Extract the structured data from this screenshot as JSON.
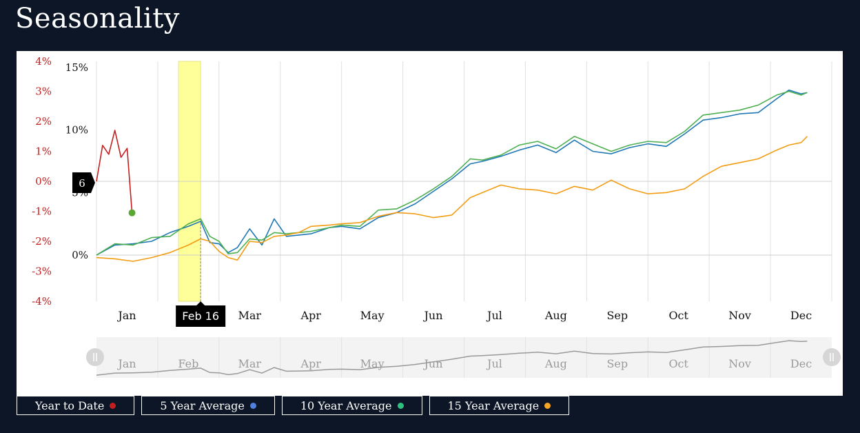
{
  "page": {
    "title": "Seasonality"
  },
  "legend": [
    {
      "label": "Year to Date",
      "color": "#c41f1f"
    },
    {
      "label": "5 Year Average",
      "color": "#4f7fe0"
    },
    {
      "label": "10 Year Average",
      "color": "#2ec27e"
    },
    {
      "label": "15 Year Average",
      "color": "#f5a623"
    }
  ],
  "tooltip": {
    "date": "Feb 16",
    "value": "6"
  },
  "chart_data": {
    "type": "line",
    "title": "Seasonality",
    "x_axis": {
      "type": "month",
      "labels": [
        "Jan",
        "Feb",
        "Mar",
        "Apr",
        "May",
        "Jun",
        "Jul",
        "Aug",
        "Sep",
        "Oct",
        "Nov",
        "Dec"
      ]
    },
    "y_axis_left": {
      "ticks": [
        "4%",
        "3%",
        "2%",
        "1%",
        "0%",
        "-1%",
        "-2%",
        "-3%",
        "-4%"
      ],
      "range": [
        -4,
        4
      ],
      "color": "#c41f1f"
    },
    "y_axis_right": {
      "ticks": [
        "15%",
        "10%",
        "5%",
        "0%"
      ],
      "range": [
        -3.7,
        15.5
      ]
    },
    "grid": true,
    "highlight_band": {
      "start_month": 1.34,
      "end_month": 1.7,
      "color": "#ffff99"
    },
    "crosshair": {
      "x_month": 1.7,
      "label": "Feb 16"
    },
    "series": [
      {
        "name": "Year to Date",
        "axis": "left",
        "color": "#c41f1f",
        "points": [
          [
            0,
            0
          ],
          [
            0.1,
            1.2
          ],
          [
            0.2,
            0.9
          ],
          [
            0.3,
            1.7
          ],
          [
            0.4,
            0.8
          ],
          [
            0.5,
            1.1
          ],
          [
            0.58,
            -1.05
          ]
        ]
      },
      {
        "name": "5 Year Average",
        "axis": "right",
        "color": "#1f77b4",
        "points": [
          [
            0,
            0
          ],
          [
            0.3,
            0.8
          ],
          [
            0.6,
            0.9
          ],
          [
            0.9,
            1.1
          ],
          [
            1.2,
            1.8
          ],
          [
            1.5,
            2.3
          ],
          [
            1.7,
            2.7
          ],
          [
            1.85,
            1.0
          ],
          [
            2.0,
            0.9
          ],
          [
            2.15,
            0.2
          ],
          [
            2.3,
            0.6
          ],
          [
            2.5,
            2.1
          ],
          [
            2.7,
            0.8
          ],
          [
            2.9,
            2.9
          ],
          [
            3.1,
            1.5
          ],
          [
            3.3,
            1.6
          ],
          [
            3.5,
            1.7
          ],
          [
            3.8,
            2.2
          ],
          [
            4.0,
            2.3
          ],
          [
            4.3,
            2.1
          ],
          [
            4.6,
            3.0
          ],
          [
            4.9,
            3.4
          ],
          [
            5.2,
            4.1
          ],
          [
            5.5,
            5.1
          ],
          [
            5.8,
            6.1
          ],
          [
            6.1,
            7.3
          ],
          [
            6.3,
            7.5
          ],
          [
            6.6,
            7.9
          ],
          [
            6.9,
            8.4
          ],
          [
            7.2,
            8.8
          ],
          [
            7.5,
            8.2
          ],
          [
            7.8,
            9.2
          ],
          [
            8.1,
            8.3
          ],
          [
            8.4,
            8.1
          ],
          [
            8.7,
            8.6
          ],
          [
            9.0,
            8.9
          ],
          [
            9.3,
            8.7
          ],
          [
            9.6,
            9.7
          ],
          [
            9.9,
            10.8
          ],
          [
            10.2,
            11.0
          ],
          [
            10.5,
            11.3
          ],
          [
            10.8,
            11.4
          ],
          [
            11.1,
            12.5
          ],
          [
            11.3,
            13.2
          ],
          [
            11.5,
            12.9
          ],
          [
            11.6,
            13.0
          ]
        ]
      },
      {
        "name": "10 Year Average",
        "axis": "right",
        "color": "#4caf50",
        "points": [
          [
            0,
            0
          ],
          [
            0.3,
            0.9
          ],
          [
            0.6,
            0.8
          ],
          [
            0.9,
            1.4
          ],
          [
            1.2,
            1.5
          ],
          [
            1.5,
            2.5
          ],
          [
            1.7,
            2.9
          ],
          [
            1.85,
            1.5
          ],
          [
            2.0,
            1.1
          ],
          [
            2.15,
            0.1
          ],
          [
            2.3,
            0.2
          ],
          [
            2.5,
            1.3
          ],
          [
            2.7,
            1.2
          ],
          [
            2.9,
            1.8
          ],
          [
            3.1,
            1.7
          ],
          [
            3.3,
            1.8
          ],
          [
            3.5,
            1.9
          ],
          [
            3.8,
            2.2
          ],
          [
            4.0,
            2.4
          ],
          [
            4.3,
            2.3
          ],
          [
            4.6,
            3.6
          ],
          [
            4.9,
            3.7
          ],
          [
            5.2,
            4.4
          ],
          [
            5.5,
            5.3
          ],
          [
            5.8,
            6.3
          ],
          [
            6.1,
            7.7
          ],
          [
            6.3,
            7.6
          ],
          [
            6.6,
            8.0
          ],
          [
            6.9,
            8.8
          ],
          [
            7.2,
            9.1
          ],
          [
            7.5,
            8.5
          ],
          [
            7.8,
            9.5
          ],
          [
            8.1,
            8.9
          ],
          [
            8.4,
            8.3
          ],
          [
            8.7,
            8.8
          ],
          [
            9.0,
            9.1
          ],
          [
            9.3,
            9.0
          ],
          [
            9.6,
            9.9
          ],
          [
            9.9,
            11.2
          ],
          [
            10.2,
            11.4
          ],
          [
            10.5,
            11.6
          ],
          [
            10.8,
            12.0
          ],
          [
            11.1,
            12.8
          ],
          [
            11.3,
            13.1
          ],
          [
            11.5,
            12.8
          ],
          [
            11.6,
            13.0
          ]
        ]
      },
      {
        "name": "15 Year Average",
        "axis": "right",
        "color": "#f39c12",
        "points": [
          [
            0,
            -0.2
          ],
          [
            0.3,
            -0.3
          ],
          [
            0.6,
            -0.5
          ],
          [
            0.9,
            -0.2
          ],
          [
            1.2,
            0.2
          ],
          [
            1.5,
            0.8
          ],
          [
            1.7,
            1.3
          ],
          [
            1.85,
            1.1
          ],
          [
            2.0,
            0.3
          ],
          [
            2.15,
            -0.2
          ],
          [
            2.3,
            -0.4
          ],
          [
            2.5,
            1.1
          ],
          [
            2.7,
            1.0
          ],
          [
            2.9,
            1.5
          ],
          [
            3.1,
            1.6
          ],
          [
            3.3,
            1.8
          ],
          [
            3.5,
            2.3
          ],
          [
            3.8,
            2.4
          ],
          [
            4.0,
            2.5
          ],
          [
            4.3,
            2.6
          ],
          [
            4.6,
            3.1
          ],
          [
            4.9,
            3.4
          ],
          [
            5.2,
            3.3
          ],
          [
            5.5,
            3.0
          ],
          [
            5.8,
            3.2
          ],
          [
            6.1,
            4.6
          ],
          [
            6.3,
            5.0
          ],
          [
            6.6,
            5.6
          ],
          [
            6.9,
            5.3
          ],
          [
            7.2,
            5.2
          ],
          [
            7.5,
            4.9
          ],
          [
            7.8,
            5.5
          ],
          [
            8.1,
            5.2
          ],
          [
            8.4,
            6.0
          ],
          [
            8.7,
            5.3
          ],
          [
            9.0,
            4.9
          ],
          [
            9.3,
            5.0
          ],
          [
            9.6,
            5.3
          ],
          [
            9.9,
            6.3
          ],
          [
            10.2,
            7.1
          ],
          [
            10.5,
            7.4
          ],
          [
            10.8,
            7.7
          ],
          [
            11.1,
            8.4
          ],
          [
            11.3,
            8.8
          ],
          [
            11.5,
            9.0
          ],
          [
            11.6,
            9.5
          ]
        ]
      }
    ],
    "navigator": {
      "labels": [
        "Jan",
        "Feb",
        "Mar",
        "Apr",
        "May",
        "Jun",
        "Jul",
        "Aug",
        "Sep",
        "Oct",
        "Nov",
        "Dec"
      ]
    }
  }
}
